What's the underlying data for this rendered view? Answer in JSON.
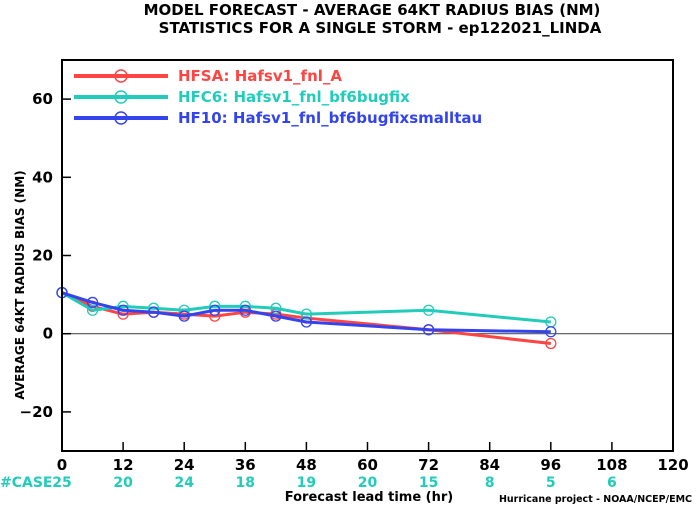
{
  "chart_data": {
    "type": "line",
    "title": "MODEL FORECAST - AVERAGE 64KT RADIUS BIAS (NM)",
    "subtitle": "STATISTICS FOR A SINGLE STORM - ep122021_LINDA",
    "xlabel": "Forecast lead time (hr)",
    "ylabel": "AVERAGE 64KT RADIUS BIAS (NM)",
    "xlim": [
      0,
      120
    ],
    "ylim": [
      -30,
      70
    ],
    "xticks": [
      0,
      12,
      24,
      36,
      48,
      60,
      72,
      84,
      96,
      108,
      120
    ],
    "xtick_labels": [
      "0",
      "12",
      "24",
      "36",
      "48",
      "60",
      "72",
      "84",
      "96",
      "108",
      "120"
    ],
    "yticks": [
      -20,
      0,
      20,
      40,
      60
    ],
    "ytick_labels": [
      "−20",
      "0",
      "20",
      "40",
      "60"
    ],
    "zero_line": true,
    "grid": false,
    "legend_position": "top-left",
    "series": [
      {
        "name": "HFSA: Hafsv1_fnl_A",
        "color": "#ff4444",
        "x": [
          0,
          6,
          12,
          18,
          24,
          30,
          36,
          42,
          48,
          72,
          96
        ],
        "y": [
          10.5,
          7.0,
          5.0,
          5.5,
          5.0,
          4.5,
          5.5,
          5.0,
          4.0,
          1.0,
          -2.5
        ]
      },
      {
        "name": "HFC6: Hafsv1_fnl_bf6bugfix",
        "color": "#22ccbb",
        "x": [
          0,
          6,
          12,
          18,
          24,
          30,
          36,
          42,
          48,
          72,
          96
        ],
        "y": [
          10.5,
          6.0,
          7.0,
          6.5,
          6.0,
          7.0,
          7.0,
          6.5,
          5.0,
          6.0,
          3.0
        ]
      },
      {
        "name": "HF10: Hafsv1_fnl_bf6bugfixsmalltau",
        "color": "#3344ee",
        "x": [
          0,
          6,
          12,
          18,
          24,
          30,
          36,
          42,
          48,
          72,
          96
        ],
        "y": [
          10.5,
          8.0,
          6.0,
          5.5,
          4.5,
          6.0,
          6.0,
          4.5,
          3.0,
          1.0,
          0.5
        ]
      }
    ],
    "cases": {
      "label": "#CASE",
      "color": "#22ccbb",
      "x": [
        0,
        12,
        24,
        36,
        48,
        60,
        72,
        84,
        96,
        108
      ],
      "values": [
        "25",
        "20",
        "24",
        "18",
        "19",
        "20",
        "15",
        "8",
        "5",
        "6"
      ]
    },
    "credit": "Hurricane project - NOAA/NCEP/EMC"
  }
}
